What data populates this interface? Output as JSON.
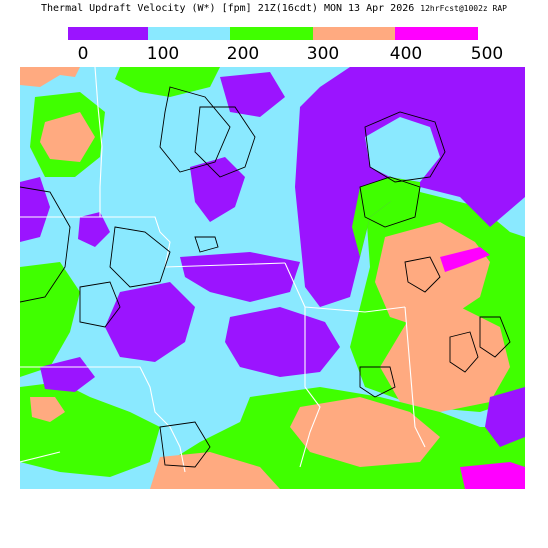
{
  "title": {
    "main": "Thermal Updraft Velocity (W*) [fpm]  21Z(16cdt) MON 13 Apr 2026",
    "run": "12hrFcst@1002z RAP"
  },
  "legend": {
    "ticks": [
      "0",
      "100",
      "200",
      "300",
      "400",
      "500"
    ],
    "bins": [
      {
        "from": 0,
        "to": 100,
        "color": "#9b14ff"
      },
      {
        "from": 100,
        "to": 200,
        "color": "#8ae9ff"
      },
      {
        "from": 200,
        "to": 300,
        "color": "#40ff00"
      },
      {
        "from": 300,
        "to": 400,
        "color": "#ffaa80"
      },
      {
        "from": 400,
        "to": 500,
        "color": "#ff00ff"
      }
    ]
  },
  "map": {
    "background_color": "#8ae9ff",
    "region_colors": {
      "lake": "#9b14ff",
      "low": "#9b14ff",
      "mid": "#40ff00",
      "warm": "#ffaa80",
      "hot": "#ff00ff"
    }
  }
}
